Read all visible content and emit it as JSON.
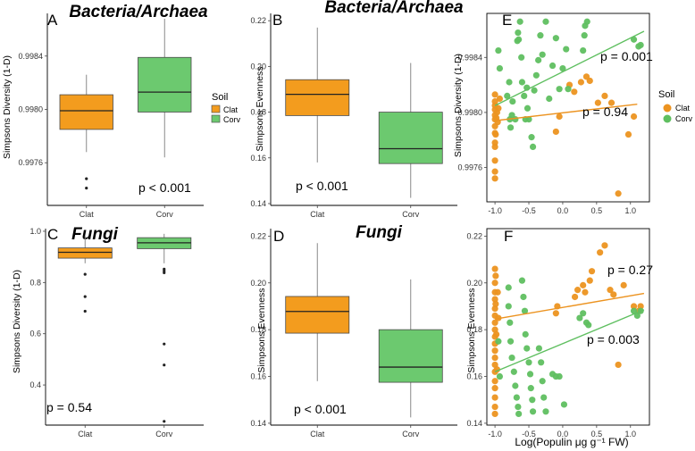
{
  "colors": {
    "clat": "#f39c1e",
    "corv": "#6cc96f",
    "clat_line": "#ec9320",
    "corv_line": "#5fbf60",
    "median": "#222222",
    "whisker": "#888888"
  },
  "legend": {
    "title": "Soil",
    "items": [
      "Clat",
      "Corv"
    ]
  },
  "chart_data": [
    {
      "id": "A",
      "panel_label": "A",
      "type": "box",
      "title": "Bacteria/Archaea",
      "ylabel": "Simpsons Diversity (1-D)",
      "xlabel": "",
      "ylim": [
        0.99728,
        0.99872
      ],
      "yticks": [
        0.9976,
        0.998,
        0.9984
      ],
      "ytick_labels": [
        "0.9976",
        "0.9980",
        "0.9984"
      ],
      "categories": [
        "Clat",
        "Corv"
      ],
      "boxes": [
        {
          "name": "Clat",
          "whislo": 0.99768,
          "q1": 0.99785,
          "med": 0.99799,
          "q3": 0.99811,
          "whishi": 0.99826,
          "outliers": [
            0.99748,
            0.99741
          ]
        },
        {
          "name": "Corv",
          "whislo": 0.99764,
          "q1": 0.99798,
          "med": 0.99813,
          "q3": 0.99839,
          "whishi": 0.99868,
          "outliers": []
        }
      ],
      "p_text": "p < 0.001",
      "p_loc": "bottom-right",
      "legend": "right"
    },
    {
      "id": "B",
      "panel_label": "B",
      "type": "box",
      "title": "Bacteria/Archaea",
      "ylabel": "Simpsons Evenness",
      "xlabel": "",
      "ylim": [
        0.1392,
        0.2232
      ],
      "yticks": [
        0.14,
        0.16,
        0.18,
        0.2,
        0.22
      ],
      "ytick_labels": [
        "0.14",
        "0.16",
        "0.18",
        "0.20",
        "0.22"
      ],
      "categories": [
        "Clat",
        "Corv"
      ],
      "boxes": [
        {
          "name": "Clat",
          "whislo": 0.158,
          "q1": 0.1785,
          "med": 0.1878,
          "q3": 0.1942,
          "whishi": 0.217,
          "outliers": []
        },
        {
          "name": "Corv",
          "whislo": 0.1425,
          "q1": 0.1575,
          "med": 0.164,
          "q3": 0.18,
          "whishi": 0.2015,
          "outliers": []
        }
      ],
      "p_text": "p < 0.001",
      "p_loc": "bottom-left"
    },
    {
      "id": "C",
      "panel_label": "C",
      "type": "box",
      "title": "Fungi",
      "ylabel": "Simpsons Diversity (1-D)",
      "xlabel": "",
      "ylim": [
        0.2434,
        1.0103
      ],
      "yticks": [
        0.4,
        0.6,
        0.8,
        1.0
      ],
      "ytick_labels": [
        "0.4",
        "0.6",
        "0.8",
        "1.0"
      ],
      "categories": [
        "Clat",
        "Corv"
      ],
      "boxes": [
        {
          "name": "Clat",
          "whislo": 0.875,
          "q1": 0.895,
          "med": 0.918,
          "q3": 0.935,
          "whishi": 0.982,
          "outliers": [
            0.832,
            0.745,
            0.688
          ]
        },
        {
          "name": "Corv",
          "whislo": 0.875,
          "q1": 0.932,
          "med": 0.955,
          "q3": 0.975,
          "whishi": 0.99,
          "outliers": [
            0.852,
            0.845,
            0.838,
            0.56,
            0.478,
            0.258
          ]
        }
      ],
      "p_text": "p = 0.54",
      "p_loc": "bottom-left"
    },
    {
      "id": "D",
      "panel_label": "D",
      "type": "box",
      "title": "Fungi",
      "ylabel": "Simpsons Evenness",
      "xlabel": "",
      "ylim": [
        0.1392,
        0.2232
      ],
      "yticks": [
        0.14,
        0.16,
        0.18,
        0.2,
        0.22
      ],
      "ytick_labels": [
        "0.14",
        "0.16",
        "0.18",
        "0.20",
        "0.22"
      ],
      "categories": [
        "Clat",
        "Corv"
      ],
      "boxes": [
        {
          "name": "Clat",
          "whislo": 0.158,
          "q1": 0.1785,
          "med": 0.1878,
          "q3": 0.1942,
          "whishi": 0.217,
          "outliers": []
        },
        {
          "name": "Corv",
          "whislo": 0.1425,
          "q1": 0.1575,
          "med": 0.164,
          "q3": 0.18,
          "whishi": 0.2015,
          "outliers": []
        }
      ],
      "p_text": "p < 0.001",
      "p_loc": "bottom-left"
    },
    {
      "id": "E",
      "panel_label": "E",
      "type": "scatter",
      "title": "",
      "ylabel": "Simpsons Diversity (1-D)",
      "xlabel": "",
      "xlim": [
        -1.12,
        1.28
      ],
      "ylim": [
        0.99735,
        0.99872
      ],
      "xticks": [
        -1.0,
        -0.5,
        0.0,
        0.5,
        1.0
      ],
      "xtick_labels": [
        "-1.0",
        "-0.5",
        "0.0",
        "0.5",
        "1.0"
      ],
      "yticks": [
        0.9976,
        0.998,
        0.9984
      ],
      "ytick_labels": [
        "0.9976",
        "0.9980",
        "0.9984"
      ],
      "series": [
        {
          "name": "Clat",
          "points": [
            [
              -1.0,
              0.99798
            ],
            [
              -1.0,
              0.99795
            ],
            [
              -1.0,
              0.99805
            ],
            [
              -1.0,
              0.99775
            ],
            [
              -1.0,
              0.9979
            ],
            [
              -1.0,
              0.99802
            ],
            [
              -1.0,
              0.99813
            ],
            [
              -1.0,
              0.99785
            ],
            [
              -1.0,
              0.99778
            ],
            [
              -1.0,
              0.99757
            ],
            [
              -1.0,
              0.99752
            ],
            [
              -1.0,
              0.99765
            ],
            [
              -1.0,
              0.99808
            ],
            [
              -0.99,
              0.99784
            ],
            [
              -0.98,
              0.99796
            ],
            [
              -0.97,
              0.998
            ],
            [
              -0.96,
              0.99793
            ],
            [
              -0.95,
              0.99803
            ],
            [
              -0.93,
              0.9981
            ],
            [
              -0.1,
              0.99786
            ],
            [
              -0.05,
              0.99797
            ],
            [
              0.1,
              0.9982
            ],
            [
              0.17,
              0.99815
            ],
            [
              0.27,
              0.99822
            ],
            [
              0.35,
              0.99826
            ],
            [
              0.4,
              0.99823
            ],
            [
              0.52,
              0.99807
            ],
            [
              0.62,
              0.99812
            ],
            [
              0.72,
              0.99807
            ],
            [
              0.82,
              0.99741
            ],
            [
              0.97,
              0.99784
            ],
            [
              1.05,
              0.99797
            ]
          ],
          "fit": {
            "x": [
              -1.0,
              1.1
            ],
            "y": [
              0.99794,
              0.99806
            ]
          },
          "p_text": "p = 0.94"
        },
        {
          "name": "Corv",
          "points": [
            [
              -0.95,
              0.99845
            ],
            [
              -0.93,
              0.99832
            ],
            [
              -0.82,
              0.99812
            ],
            [
              -0.79,
              0.99822
            ],
            [
              -0.78,
              0.99795
            ],
            [
              -0.77,
              0.99789
            ],
            [
              -0.75,
              0.99798
            ],
            [
              -0.74,
              0.99808
            ],
            [
              -0.7,
              0.99795
            ],
            [
              -0.67,
              0.99852
            ],
            [
              -0.66,
              0.99858
            ],
            [
              -0.65,
              0.99853
            ],
            [
              -0.63,
              0.99866
            ],
            [
              -0.61,
              0.9984
            ],
            [
              -0.6,
              0.99822
            ],
            [
              -0.57,
              0.99812
            ],
            [
              -0.55,
              0.99795
            ],
            [
              -0.53,
              0.99818
            ],
            [
              -0.52,
              0.99803
            ],
            [
              -0.5,
              0.99795
            ],
            [
              -0.46,
              0.99782
            ],
            [
              -0.44,
              0.99775
            ],
            [
              -0.42,
              0.99816
            ],
            [
              -0.39,
              0.99827
            ],
            [
              -0.36,
              0.99838
            ],
            [
              -0.33,
              0.99856
            ],
            [
              -0.3,
              0.99842
            ],
            [
              -0.25,
              0.99866
            ],
            [
              -0.2,
              0.9981
            ],
            [
              -0.15,
              0.99834
            ],
            [
              -0.1,
              0.99854
            ],
            [
              -0.05,
              0.99817
            ],
            [
              0.0,
              0.99832
            ],
            [
              0.05,
              0.99846
            ],
            [
              0.08,
              0.99817
            ],
            [
              0.3,
              0.99845
            ],
            [
              0.32,
              0.99856
            ],
            [
              0.33,
              0.99863
            ],
            [
              0.36,
              0.99866
            ],
            [
              1.05,
              0.99853
            ],
            [
              1.12,
              0.99848
            ],
            [
              1.15,
              0.99849
            ]
          ],
          "fit": {
            "x": [
              -1.0,
              1.2
            ],
            "y": [
              0.99805,
              0.99859
            ]
          },
          "p_text": "p = 0.001"
        }
      ],
      "legend": "right"
    },
    {
      "id": "F",
      "panel_label": "F",
      "type": "scatter",
      "title": "",
      "ylabel": "Simpsons Evenness",
      "xlabel": "Log(Populin μg g⁻¹ FW)",
      "xlim": [
        -1.12,
        1.28
      ],
      "ylim": [
        0.1392,
        0.2232
      ],
      "xticks": [
        -1.0,
        -0.5,
        0.0,
        0.5,
        1.0
      ],
      "xtick_labels": [
        "-1.0",
        "-0.5",
        "0.0",
        "0.5",
        "1.0"
      ],
      "yticks": [
        0.14,
        0.16,
        0.18,
        0.2,
        0.22
      ],
      "ytick_labels": [
        "0.14",
        "0.16",
        "0.18",
        "0.20",
        "0.22"
      ],
      "series": [
        {
          "name": "Clat",
          "points": [
            [
              -1.0,
              0.206
            ],
            [
              -1.0,
              0.2
            ],
            [
              -1.0,
              0.196
            ],
            [
              -1.0,
              0.193
            ],
            [
              -1.0,
              0.189
            ],
            [
              -1.0,
              0.186
            ],
            [
              -1.0,
              0.183
            ],
            [
              -1.0,
              0.18
            ],
            [
              -1.0,
              0.177
            ],
            [
              -1.0,
              0.174
            ],
            [
              -1.0,
              0.171
            ],
            [
              -1.0,
              0.168
            ],
            [
              -1.0,
              0.165
            ],
            [
              -1.0,
              0.162
            ],
            [
              -1.0,
              0.158
            ],
            [
              -1.0,
              0.155
            ],
            [
              -1.0,
              0.151
            ],
            [
              -1.0,
              0.147
            ],
            [
              -1.0,
              0.144
            ],
            [
              -0.99,
              0.203
            ],
            [
              -0.99,
              0.191
            ],
            [
              -0.98,
              0.178
            ],
            [
              -0.97,
              0.163
            ],
            [
              -0.96,
              0.196
            ],
            [
              -0.95,
              0.185
            ],
            [
              -0.1,
              0.187
            ],
            [
              -0.08,
              0.19
            ],
            [
              0.18,
              0.194
            ],
            [
              0.22,
              0.197
            ],
            [
              0.3,
              0.199
            ],
            [
              0.33,
              0.196
            ],
            [
              0.4,
              0.201
            ],
            [
              0.43,
              0.205
            ],
            [
              0.55,
              0.213
            ],
            [
              0.62,
              0.216
            ],
            [
              0.7,
              0.197
            ],
            [
              0.75,
              0.195
            ],
            [
              0.82,
              0.165
            ],
            [
              0.9,
              0.199
            ],
            [
              1.05,
              0.19
            ],
            [
              1.12,
              0.188
            ],
            [
              1.15,
              0.19
            ]
          ],
          "fit": {
            "x": [
              -1.0,
              1.2
            ],
            "y": [
              0.1845,
              0.1955
            ]
          },
          "p_text": "p = 0.27"
        },
        {
          "name": "Corv",
          "points": [
            [
              -0.95,
              0.175
            ],
            [
              -0.93,
              0.16
            ],
            [
              -0.8,
              0.198
            ],
            [
              -0.8,
              0.19
            ],
            [
              -0.78,
              0.183
            ],
            [
              -0.77,
              0.175
            ],
            [
              -0.75,
              0.168
            ],
            [
              -0.72,
              0.162
            ],
            [
              -0.7,
              0.156
            ],
            [
              -0.68,
              0.151
            ],
            [
              -0.66,
              0.147
            ],
            [
              -0.65,
              0.144
            ],
            [
              -0.6,
              0.201
            ],
            [
              -0.58,
              0.194
            ],
            [
              -0.56,
              0.188
            ],
            [
              -0.55,
              0.178
            ],
            [
              -0.53,
              0.172
            ],
            [
              -0.5,
              0.166
            ],
            [
              -0.48,
              0.161
            ],
            [
              -0.47,
              0.155
            ],
            [
              -0.45,
              0.15
            ],
            [
              -0.44,
              0.145
            ],
            [
              -0.35,
              0.172
            ],
            [
              -0.32,
              0.166
            ],
            [
              -0.3,
              0.158
            ],
            [
              -0.28,
              0.151
            ],
            [
              -0.25,
              0.145
            ],
            [
              -0.15,
              0.161
            ],
            [
              -0.1,
              0.16
            ],
            [
              -0.05,
              0.16
            ],
            [
              0.02,
              0.148
            ],
            [
              0.25,
              0.185
            ],
            [
              0.3,
              0.187
            ],
            [
              0.35,
              0.183
            ],
            [
              0.38,
              0.182
            ],
            [
              1.05,
              0.188
            ],
            [
              1.1,
              0.186
            ],
            [
              1.15,
              0.188
            ]
          ],
          "fit": {
            "x": [
              -1.0,
              1.2
            ],
            "y": [
              0.162,
              0.1885
            ]
          },
          "p_text": "p = 0.003"
        }
      ],
      "legend": "none"
    }
  ]
}
